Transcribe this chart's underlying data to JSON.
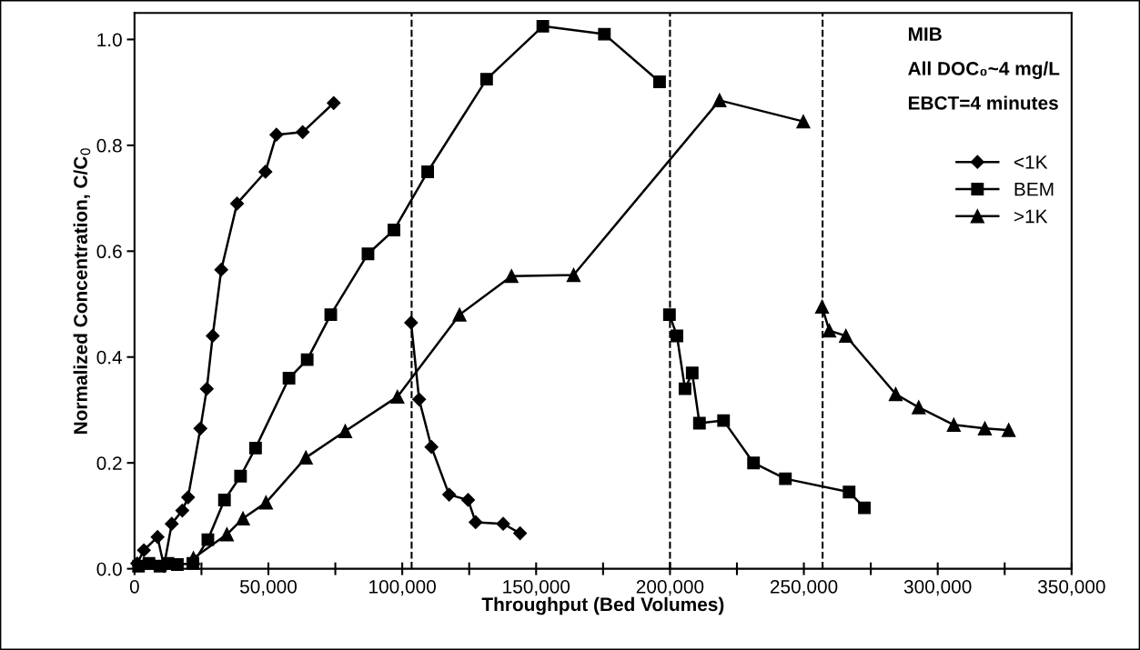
{
  "chart_data": {
    "type": "line",
    "xlabel": "Throughput (Bed Volumes)",
    "ylabel": "Normalized Concentration, C/C$_{0}$",
    "annotations": [
      "MIB",
      "All DOC₀~4 mg/L",
      "EBCT=4 minutes"
    ],
    "xlim": [
      0,
      350000
    ],
    "ylim": [
      0,
      1.05
    ],
    "xticks": [
      0,
      {
        "value": 25000,
        "label": null
      },
      {
        "value": 50000,
        "label": "50,000"
      },
      {
        "value": 75000,
        "label": null
      },
      {
        "value": 100000,
        "label": "100,000"
      },
      {
        "value": 125000,
        "label": null
      },
      {
        "value": 150000,
        "label": "150,000"
      },
      {
        "value": 175000,
        "label": null
      },
      {
        "value": 200000,
        "label": "200,000"
      },
      {
        "value": 225000,
        "label": null
      },
      {
        "value": 250000,
        "label": "250,000"
      },
      {
        "value": 275000,
        "label": null
      },
      {
        "value": 300000,
        "label": "300,000"
      },
      {
        "value": 325000,
        "label": null
      },
      {
        "value": 350000,
        "label": "350,000"
      }
    ],
    "yticks": [
      {
        "value": 0,
        "label": "0.0"
      },
      {
        "value": 0.2,
        "label": "0.2"
      },
      {
        "value": 0.4,
        "label": "0.4"
      },
      {
        "value": 0.6,
        "label": "0.6"
      },
      {
        "value": 0.8,
        "label": "0.8"
      },
      {
        "value": 1.0,
        "label": "1.0"
      }
    ],
    "grid": false,
    "legend": "right",
    "line_style": "solid",
    "ref_lines": [
      {
        "axis": "x",
        "value": 103500,
        "label": null,
        "color": "#000000",
        "line_style": "dashed"
      },
      {
        "axis": "x",
        "value": 200000,
        "label": null,
        "color": "#000000",
        "line_style": "dashed"
      },
      {
        "axis": "x",
        "value": 257000,
        "label": null,
        "color": "#000000",
        "line_style": "dashed"
      }
    ],
    "series": [
      {
        "name": "<1K",
        "color": "#000000",
        "marker": "diamond",
        "x": [
          1000,
          3500,
          8600,
          11000,
          13900,
          17850,
          20000,
          24600,
          27000,
          29200,
          32400,
          38300,
          48900,
          53000,
          62800,
          74400,
          90000,
          103300,
          106300,
          110900,
          117500,
          124600,
          127400,
          137700,
          144000
        ],
        "values": [
          0.01,
          0.035,
          0.06,
          0.005,
          0.085,
          0.11,
          0.135,
          0.265,
          0.34,
          0.44,
          0.565,
          0.69,
          0.75,
          0.82,
          0.825,
          0.88,
          null,
          0.465,
          0.32,
          0.23,
          0.14,
          0.13,
          0.088,
          0.085,
          0.067
        ]
      },
      {
        "name": "BEM",
        "color": "#000000",
        "marker": "square",
        "x": [
          1500,
          5400,
          9500,
          12500,
          16000,
          21800,
          27400,
          33600,
          39600,
          45200,
          57700,
          64500,
          73300,
          87200,
          96900,
          109500,
          131500,
          152500,
          175500,
          196100,
          198000,
          199800,
          202600,
          205600,
          208300,
          211000,
          220000,
          231200,
          243100,
          266900,
          272600
        ],
        "values": [
          0.005,
          0.01,
          0.005,
          0.01,
          0.008,
          0.01,
          0.055,
          0.13,
          0.175,
          0.228,
          0.36,
          0.395,
          0.48,
          0.595,
          0.64,
          0.75,
          0.925,
          1.025,
          1.01,
          0.92,
          null,
          0.48,
          0.44,
          0.34,
          0.37,
          0.275,
          0.28,
          0.2,
          0.17,
          0.145,
          0.115
        ]
      },
      {
        "name": ">1K",
        "color": "#000000",
        "marker": "triangle",
        "x": [
          22000,
          34500,
          40500,
          49100,
          64000,
          78700,
          98200,
          121400,
          140800,
          164000,
          218500,
          249800,
          253000,
          256800,
          259500,
          265700,
          284300,
          292900,
          306000,
          317600,
          326500
        ],
        "values": [
          0.02,
          0.065,
          0.095,
          0.125,
          0.21,
          0.26,
          0.325,
          0.48,
          0.553,
          0.555,
          0.885,
          0.845,
          null,
          0.495,
          0.45,
          0.44,
          0.33,
          0.305,
          0.272,
          0.265,
          0.262
        ]
      }
    ]
  }
}
